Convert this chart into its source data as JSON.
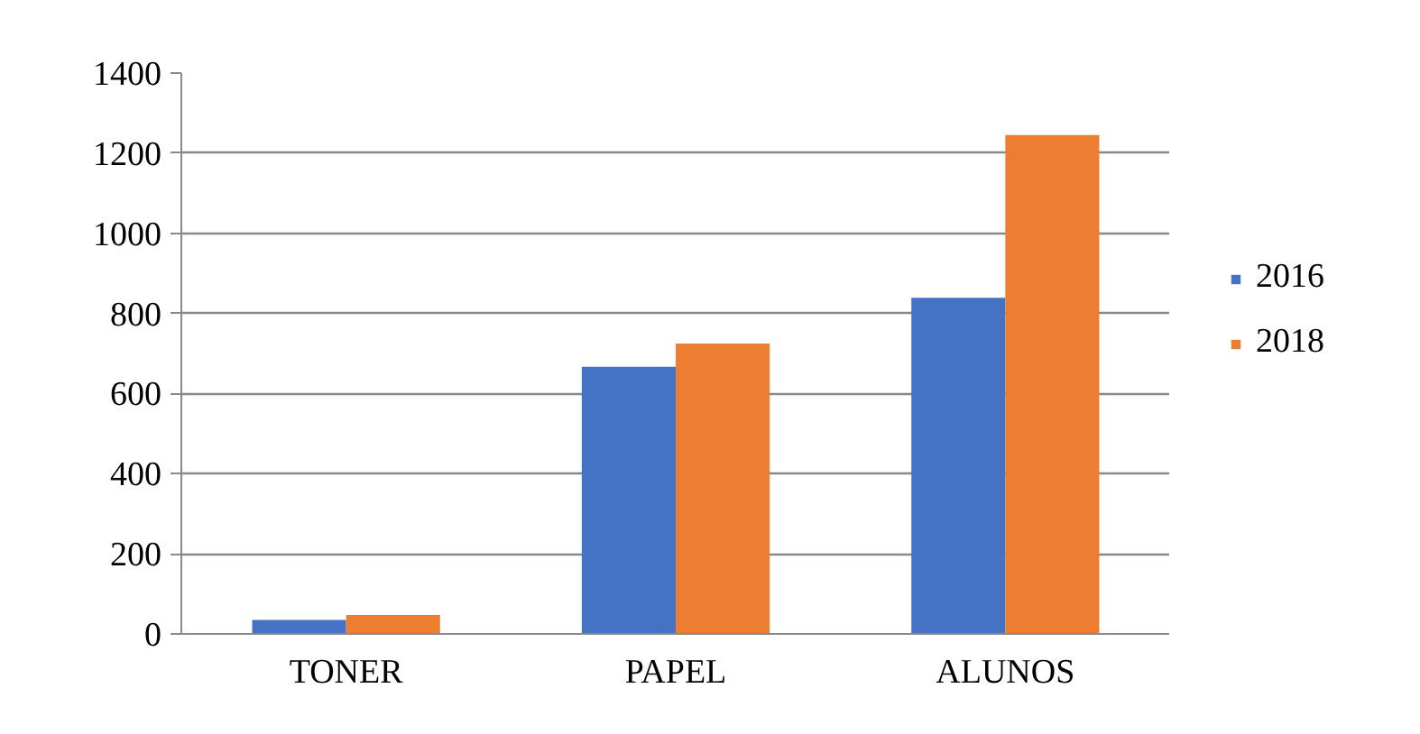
{
  "chart_data": {
    "type": "bar",
    "categories": [
      "TONER",
      "PAPEL",
      "ALUNOS"
    ],
    "series": [
      {
        "name": "2016",
        "color": "#4472c4",
        "values": [
          35,
          667,
          839
        ]
      },
      {
        "name": "2018",
        "color": "#ed7d31",
        "values": [
          47,
          725,
          1245
        ]
      }
    ],
    "ylim": [
      0,
      1400
    ],
    "yticks": [
      0,
      200,
      400,
      600,
      800,
      1000,
      1200,
      1400
    ],
    "grid": "y",
    "legend": "right"
  }
}
